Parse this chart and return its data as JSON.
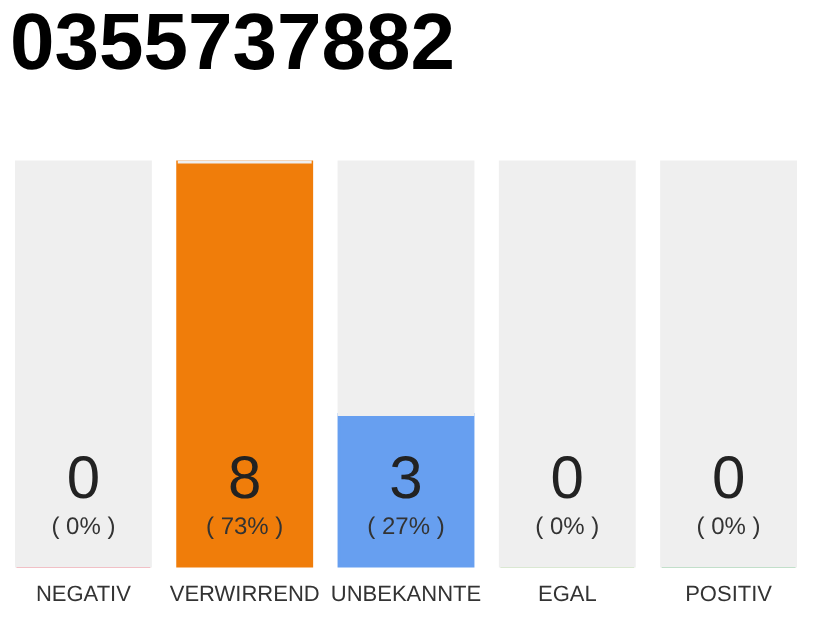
{
  "chart_data": {
    "type": "bar",
    "title": "0355737882",
    "categories": [
      "NEGATIV",
      "VERWIRREND",
      "UNBEKANNTE",
      "EGAL",
      "POSITIV"
    ],
    "stacked": true,
    "series": [
      {
        "values": [
          0,
          8,
          3,
          0,
          0
        ],
        "colors": [
          "#e8243c",
          "#f07d0a",
          "#679ff0",
          "#8cc46c",
          "#2a9d4a"
        ],
        "value_labels": [
          "0",
          "8",
          "3",
          "0",
          "0"
        ]
      },
      {
        "values": [
          8,
          0,
          5,
          8,
          8
        ],
        "color": "#efefef"
      }
    ],
    "annotations": [
      "( 0% )",
      "( 73% )",
      "( 27% )",
      "( 0% )",
      "( 0% )"
    ]
  }
}
